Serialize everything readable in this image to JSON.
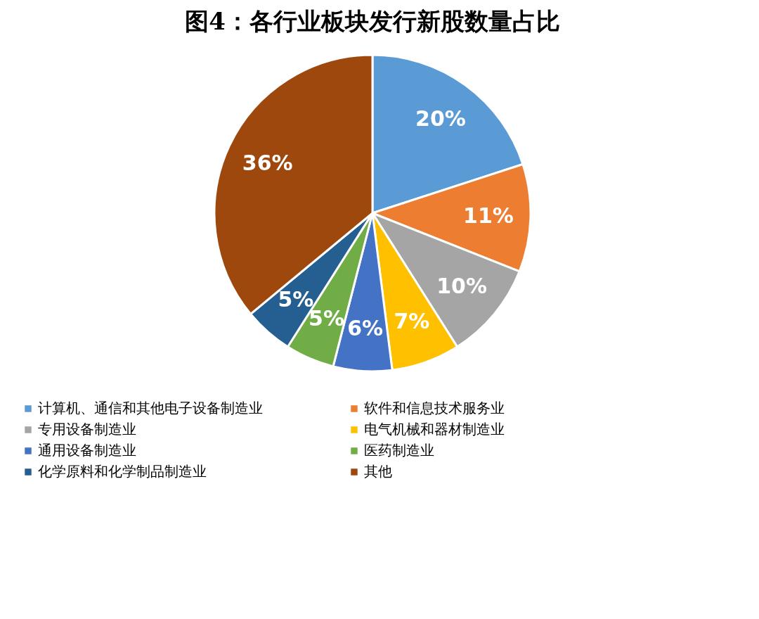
{
  "chart_data": {
    "type": "pie",
    "title": "图4：各行业板块发行新股数量占比",
    "categories": [
      "计算机、通信和其他电子设备制造业",
      "软件和信息技术服务业",
      "专用设备制造业",
      "电气机械和器材制造业",
      "通用设备制造业",
      "医药制造业",
      "化学原料和化学制品制造业",
      "其他"
    ],
    "values": [
      20,
      11,
      10,
      7,
      6,
      5,
      5,
      36
    ],
    "colors": [
      "#5b9bd5",
      "#ed7d31",
      "#a5a5a5",
      "#ffc000",
      "#4472c4",
      "#70ad47",
      "#255e91",
      "#9e480e"
    ],
    "value_labels": [
      "20%",
      "11%",
      "10%",
      "7%",
      "6%",
      "5%",
      "5%",
      "36%"
    ],
    "legend": "bottom"
  }
}
